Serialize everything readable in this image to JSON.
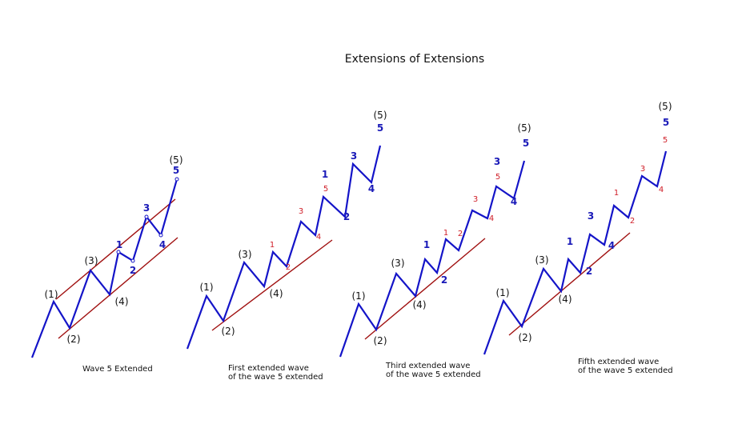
{
  "title": "Extensions of Extensions",
  "colors": {
    "wave": "#1414c8",
    "channel": "#a01010",
    "sub_label": "#1a1ab8",
    "subsub_label": "#d0202a",
    "text": "#111111"
  },
  "panels": [
    {
      "caption": [
        "Wave 5 Extended"
      ],
      "major_labels": [
        "(1)",
        "(2)",
        "(3)",
        "(4)",
        "(5)"
      ],
      "sub_labels": [
        "1",
        "2",
        "3",
        "4",
        "5"
      ],
      "subsub_labels": []
    },
    {
      "caption": [
        "First extended wave",
        "of the wave 5 extended"
      ],
      "major_labels": [
        "(1)",
        "(2)",
        "(3)",
        "(4)",
        "(5)"
      ],
      "sub_labels": [
        "1",
        "2",
        "3",
        "4",
        "5"
      ],
      "subsub_labels": [
        "1",
        "2",
        "3",
        "4",
        "5"
      ]
    },
    {
      "caption": [
        "Third extended wave",
        "of the wave 5 extended"
      ],
      "major_labels": [
        "(1)",
        "(2)",
        "(3)",
        "(4)",
        "(5)"
      ],
      "sub_labels": [
        "1",
        "2",
        "3",
        "4",
        "5"
      ],
      "subsub_labels": [
        "1",
        "2",
        "3",
        "4",
        "5"
      ]
    },
    {
      "caption": [
        "Fifth extended wave",
        "of the wave 5 extended"
      ],
      "major_labels": [
        "(1)",
        "(2)",
        "(3)",
        "(4)",
        "(5)"
      ],
      "sub_labels": [
        "1",
        "2",
        "3",
        "4",
        "5"
      ],
      "subsub_labels": [
        "1",
        "2",
        "3",
        "4",
        "5"
      ]
    }
  ]
}
